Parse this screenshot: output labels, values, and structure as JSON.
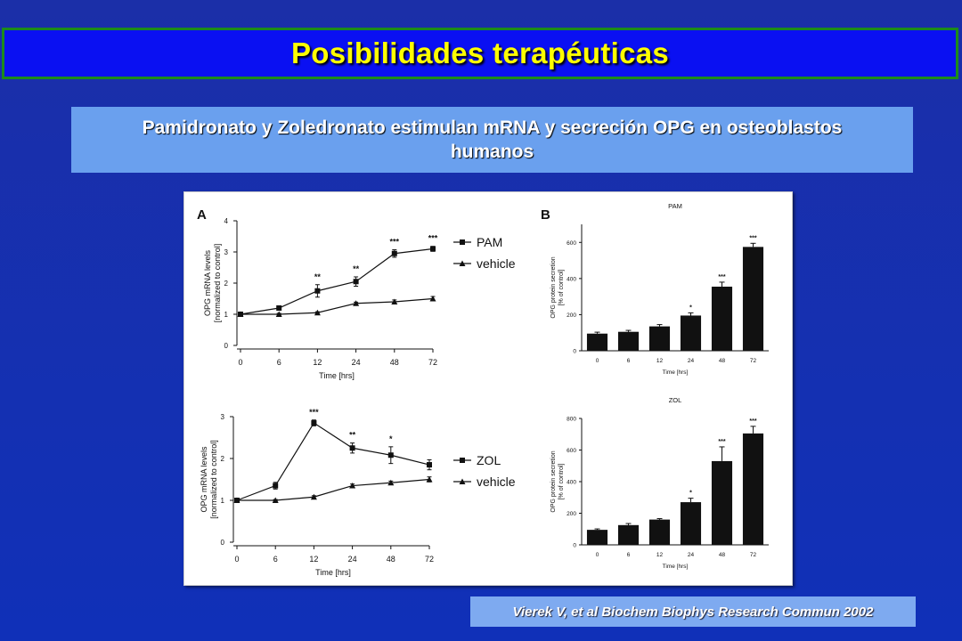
{
  "slide": {
    "title": "Posibilidades terapéuticas",
    "subtitle": "Pamidronato y Zoledronato estimulan mRNA y secreción OPG en osteoblastos humanos",
    "citation": "Vierek V, et al Biochem Biophys Research Commun 2002",
    "colors": {
      "background": "#1b2fa8",
      "title_bar": "#0a10f2",
      "title_text": "#ffff00",
      "title_border": "#1c8a1c",
      "subtitle_box": "#6aa0ee",
      "citation_box": "#7eaaf0"
    }
  },
  "panel_labels": {
    "a": "A",
    "b": "B"
  },
  "chart_data": [
    {
      "id": "A_top",
      "type": "line",
      "x": [
        0,
        6,
        12,
        24,
        48,
        72
      ],
      "xlabel": "Time [hrs]",
      "ylabel_lines": [
        "OPG mRNA levels",
        "[normalized to control]"
      ],
      "ylim": [
        0,
        4
      ],
      "yticks": [
        0,
        1,
        2,
        3,
        4
      ],
      "series": [
        {
          "name": "PAM",
          "marker": "square",
          "values": [
            1.0,
            1.2,
            1.75,
            2.05,
            2.95,
            3.1
          ],
          "errors": [
            0.05,
            0.05,
            0.2,
            0.15,
            0.12,
            0.08
          ],
          "sig": [
            "",
            "",
            "**",
            "**",
            "***",
            "***"
          ]
        },
        {
          "name": "vehicle",
          "marker": "triangle",
          "values": [
            1.0,
            1.0,
            1.05,
            1.35,
            1.4,
            1.5
          ],
          "errors": [
            0.03,
            0.03,
            0.03,
            0.04,
            0.06,
            0.07
          ]
        }
      ]
    },
    {
      "id": "A_bottom",
      "type": "line",
      "x": [
        0,
        6,
        12,
        24,
        48,
        72
      ],
      "xlabel": "Time [hrs]",
      "ylabel_lines": [
        "OPG mRNA levels",
        "[normalized to control]"
      ],
      "ylim": [
        0,
        3
      ],
      "yticks": [
        0,
        1,
        2,
        3
      ],
      "series": [
        {
          "name": "ZOL",
          "marker": "square",
          "values": [
            1.0,
            1.35,
            2.85,
            2.25,
            2.08,
            1.85
          ],
          "errors": [
            0.03,
            0.08,
            0.07,
            0.12,
            0.2,
            0.12
          ],
          "sig": [
            "",
            "",
            "***",
            "**",
            "*",
            ""
          ]
        },
        {
          "name": "vehicle",
          "marker": "triangle",
          "values": [
            1.0,
            1.0,
            1.08,
            1.35,
            1.42,
            1.5
          ],
          "errors": [
            0.02,
            0.02,
            0.03,
            0.04,
            0.04,
            0.06
          ]
        }
      ]
    },
    {
      "id": "B_top",
      "type": "bar",
      "title": "PAM",
      "categories": [
        "0",
        "6",
        "12",
        "24",
        "48",
        "72"
      ],
      "xlabel": "Time [hrs]",
      "ylabel_lines": [
        "OPG protein secretion",
        "[% of control]"
      ],
      "ylim": [
        0,
        700
      ],
      "yticks": [
        0,
        200,
        400,
        600
      ],
      "values": [
        95,
        105,
        135,
        195,
        355,
        575
      ],
      "errors": [
        8,
        8,
        10,
        15,
        25,
        20
      ],
      "sig": [
        "",
        "",
        "",
        "*",
        "***",
        "***"
      ]
    },
    {
      "id": "B_bottom",
      "type": "bar",
      "title": "ZOL",
      "categories": [
        "0",
        "6",
        "12",
        "24",
        "48",
        "72"
      ],
      "xlabel": "Time [hrs]",
      "ylabel_lines": [
        "OPG protein secretion",
        "[% of control]"
      ],
      "ylim": [
        0,
        800
      ],
      "yticks": [
        0,
        200,
        400,
        600,
        800
      ],
      "values": [
        95,
        125,
        160,
        270,
        530,
        705
      ],
      "errors": [
        6,
        10,
        6,
        25,
        90,
        45
      ],
      "sig": [
        "",
        "",
        "",
        "*",
        "***",
        "***"
      ]
    }
  ]
}
